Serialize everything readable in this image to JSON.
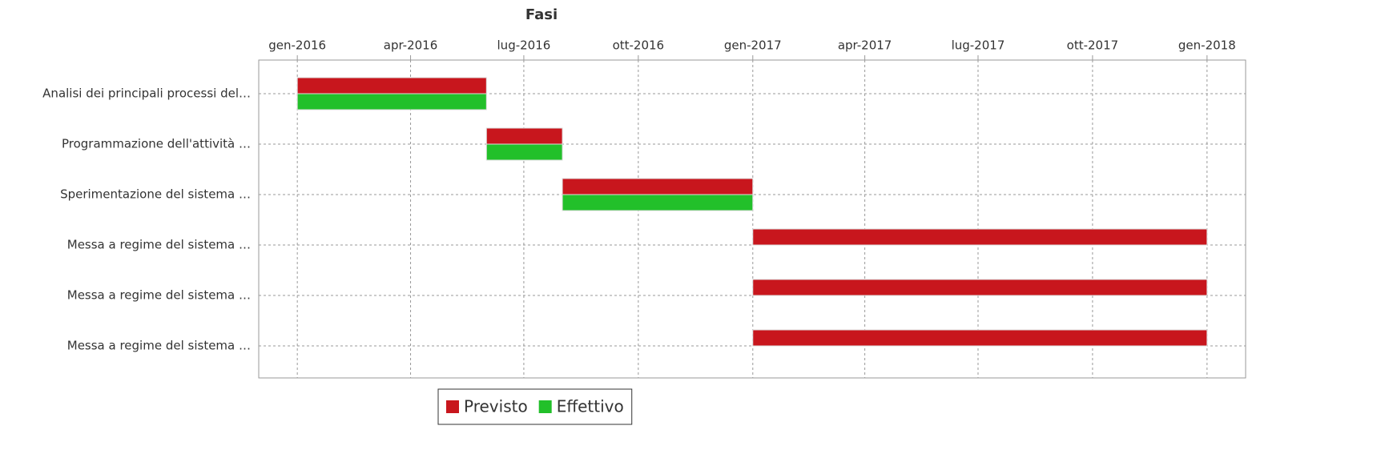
{
  "chart_data": {
    "type": "gantt",
    "title": "Fasi",
    "categories": [
      "Analisi dei principali processi del…",
      "Programmazione dell'attività …",
      "Sperimentazione del sistema …",
      "Messa a regime del sistema …",
      "Messa a regime del sistema …",
      "Messa a regime del sistema …"
    ],
    "series": [
      {
        "name": "Previsto",
        "color": "#c8161d",
        "start": [
          "2016-01",
          "2016-06",
          "2016-08",
          "2017-01",
          "2017-01",
          "2017-01"
        ],
        "end": [
          "2016-06",
          "2016-08",
          "2017-01",
          "2018-01",
          "2018-01",
          "2018-01"
        ]
      },
      {
        "name": "Effettivo",
        "color": "#22c02a",
        "start": [
          "2016-01",
          "2016-06",
          "2016-08",
          null,
          null,
          null
        ],
        "end": [
          "2016-06",
          "2016-08",
          "2017-01",
          null,
          null,
          null
        ]
      }
    ],
    "xlim": [
      "2015-12",
      "2018-02"
    ],
    "xticks": [
      {
        "value": "2016-01",
        "label": "gen-2016"
      },
      {
        "value": "2016-04",
        "label": "apr-2016"
      },
      {
        "value": "2016-07",
        "label": "lug-2016"
      },
      {
        "value": "2016-10",
        "label": "ott-2016"
      },
      {
        "value": "2017-01",
        "label": "gen-2017"
      },
      {
        "value": "2017-04",
        "label": "apr-2017"
      },
      {
        "value": "2017-07",
        "label": "lug-2017"
      },
      {
        "value": "2017-10",
        "label": "ott-2017"
      },
      {
        "value": "2018-01",
        "label": "gen-2018"
      }
    ],
    "grid": true,
    "legend": "bottom"
  }
}
